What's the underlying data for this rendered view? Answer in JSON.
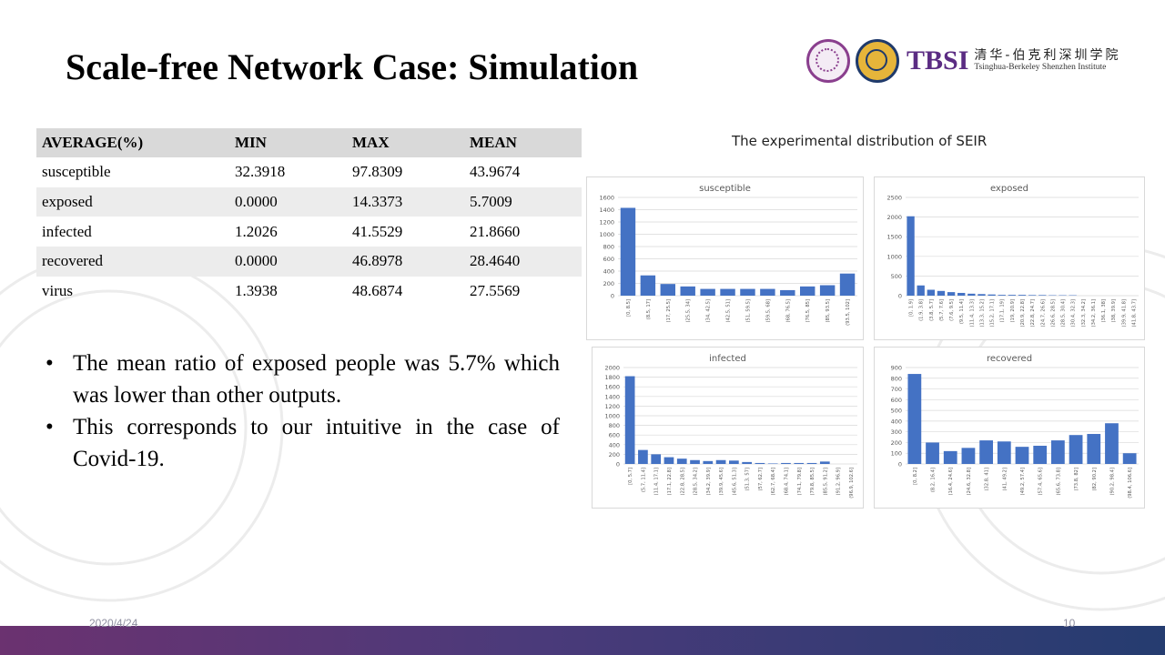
{
  "slide": {
    "title": "Scale-free Network Case: Simulation",
    "date": "2020/4/24",
    "page_number": "10"
  },
  "logo": {
    "name": "TBSI",
    "chinese_name": "清华-伯克利深圳学院",
    "english_name": "Tsinghua-Berkeley Shenzhen Institute"
  },
  "table": {
    "headers": [
      "AVERAGE(%)",
      "MIN",
      "MAX",
      "MEAN"
    ],
    "rows": [
      [
        "susceptible",
        "32.3918",
        "97.8309",
        "43.9674"
      ],
      [
        "exposed",
        "0.0000",
        "14.3373",
        "5.7009"
      ],
      [
        "infected",
        "1.2026",
        "41.5529",
        "21.8660"
      ],
      [
        "recovered",
        "0.0000",
        "46.8978",
        "28.4640"
      ],
      [
        "virus",
        "1.3938",
        "48.6874",
        "27.5569"
      ]
    ]
  },
  "bullets": [
    "The mean ratio of exposed people was 5.7% which was lower than other outputs.",
    "This corresponds to our intuitive in the case of Covid-19."
  ],
  "figure_title": "The experimental distribution of SEIR",
  "colors": {
    "bar": "#4472c4",
    "footer_start": "#6b3270",
    "footer_end": "#253c70"
  },
  "chart_data": [
    {
      "type": "bar",
      "title": "susceptible",
      "ylim": [
        0,
        1600
      ],
      "yticks": [
        0,
        200,
        400,
        600,
        800,
        1000,
        1200,
        1400,
        1600
      ],
      "categories": [
        "[0, 8.5]",
        "(8.5, 17]",
        "(17, 25.5]",
        "(25.5, 34]",
        "(34, 42.5]",
        "(42.5, 51]",
        "(51, 59.5]",
        "(59.5, 68]",
        "(68, 76.5]",
        "(76.5, 85]",
        "(85, 93.5]",
        "(93.5, 102]"
      ],
      "values": [
        1430,
        330,
        190,
        150,
        110,
        110,
        110,
        110,
        90,
        150,
        170,
        360
      ],
      "grid": true
    },
    {
      "type": "bar",
      "title": "exposed",
      "ylim": [
        0,
        2500
      ],
      "yticks": [
        0,
        500,
        1000,
        1500,
        2000,
        2500
      ],
      "categories": [
        "[0, 1.9]",
        "(1.9, 3.8]",
        "(3.8, 5.7]",
        "(5.7, 7.6]",
        "(7.6, 9.5]",
        "(9.5, 11.4]",
        "(11.4, 13.3]",
        "(13.3, 15.2]",
        "(15.2, 17.1]",
        "(17.1, 19]",
        "(19, 20.9]",
        "(20.9, 22.8]",
        "(22.8, 24.7]",
        "(24.7, 26.6]",
        "(26.6, 28.5]",
        "(28.5, 30.4]",
        "(30.4, 32.3]",
        "(32.3, 34.2]",
        "(34.2, 36.1]",
        "(36.1, 38]",
        "(38, 39.9]",
        "(39.9, 41.8]",
        "(41.8, 43.7]"
      ],
      "values": [
        2020,
        260,
        150,
        120,
        90,
        70,
        50,
        40,
        30,
        20,
        20,
        20,
        15,
        15,
        10,
        10,
        10,
        0,
        0,
        0,
        0,
        0,
        0
      ],
      "grid": true
    },
    {
      "type": "bar",
      "title": "infected",
      "ylim": [
        0,
        2000
      ],
      "yticks": [
        0,
        200,
        400,
        600,
        800,
        1000,
        1200,
        1400,
        1600,
        1800,
        2000
      ],
      "categories": [
        "[0, 5.7]",
        "(5.7, 11.4]",
        "(11.4, 17.1]",
        "(17.1, 22.8]",
        "(22.8, 28.5]",
        "(28.5, 34.2]",
        "(34.2, 39.9]",
        "(39.9, 45.6]",
        "(45.6, 51.3]",
        "(51.3, 57]",
        "(57, 62.7]",
        "(62.7, 68.4]",
        "(68.4, 74.1]",
        "(74.1, 79.8]",
        "(79.8, 85.5]",
        "(85.5, 91.2]",
        "(91.2, 96.9]",
        "(96.9, 102.6]"
      ],
      "values": [
        1820,
        290,
        200,
        140,
        110,
        80,
        60,
        80,
        70,
        40,
        20,
        10,
        20,
        20,
        20,
        50,
        0,
        0
      ],
      "grid": true
    },
    {
      "type": "bar",
      "title": "recovered",
      "ylim": [
        0,
        900
      ],
      "yticks": [
        0,
        100,
        200,
        300,
        400,
        500,
        600,
        700,
        800,
        900
      ],
      "categories": [
        "[0, 8.2]",
        "(8.2, 16.4]",
        "(16.4, 24.6]",
        "(24.6, 32.8]",
        "(32.8, 41]",
        "(41, 49.2]",
        "(49.2, 57.4]",
        "(57.4, 65.6]",
        "(65.6, 73.8]",
        "(73.8, 82]",
        "(82, 90.2]",
        "(90.2, 98.4]",
        "(98.4, 106.6]"
      ],
      "values": [
        840,
        200,
        120,
        150,
        220,
        210,
        160,
        170,
        220,
        270,
        280,
        380,
        100
      ],
      "grid": true
    }
  ]
}
